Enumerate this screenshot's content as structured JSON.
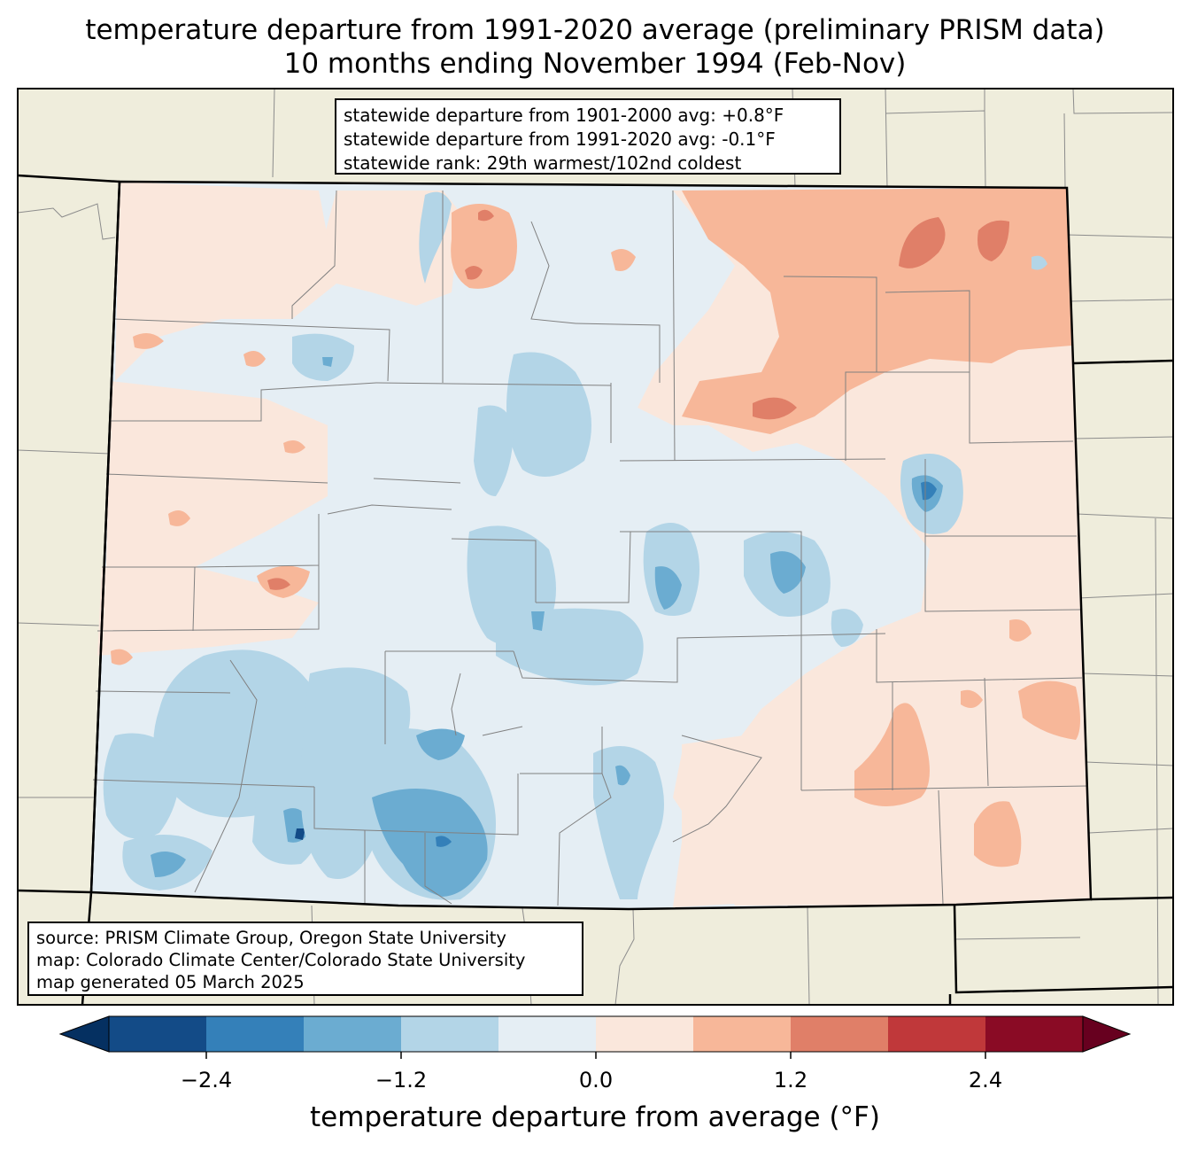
{
  "title": {
    "line1": "temperature departure from 1991-2020 average (preliminary PRISM data)",
    "line2": "10 months ending November 1994 (Feb-Nov)"
  },
  "stats": {
    "line1": "statewide departure from 1901-2000 avg: +0.8°F",
    "line2": "statewide departure from 1991-2020 avg: -0.1°F",
    "line3": "statewide rank: 29th warmest/102nd coldest"
  },
  "source": {
    "line1": "source: PRISM Climate Group, Oregon State University",
    "line2": "map: Colorado Climate Center/Colorado State University",
    "line3": "map generated 05 March 2025"
  },
  "colorbar": {
    "label": "temperature departure from average (°F)",
    "ticks": [
      "−2.4",
      "−1.2",
      "0.0",
      "1.2",
      "2.4"
    ],
    "bins": [
      -3.0,
      -2.4,
      -1.8,
      -1.2,
      -0.6,
      0.0,
      0.6,
      1.2,
      1.8,
      2.4,
      3.0
    ],
    "colors": [
      "#053061",
      "#134b87",
      "#3480b9",
      "#6bacd1",
      "#b3d5e7",
      "#e5eef4",
      "#fae7dc",
      "#f7b799",
      "#e07f68",
      "#c0383a",
      "#8a0b25",
      "#67001f"
    ]
  },
  "map": {
    "land_color": "#efeddc",
    "region": "Colorado"
  }
}
